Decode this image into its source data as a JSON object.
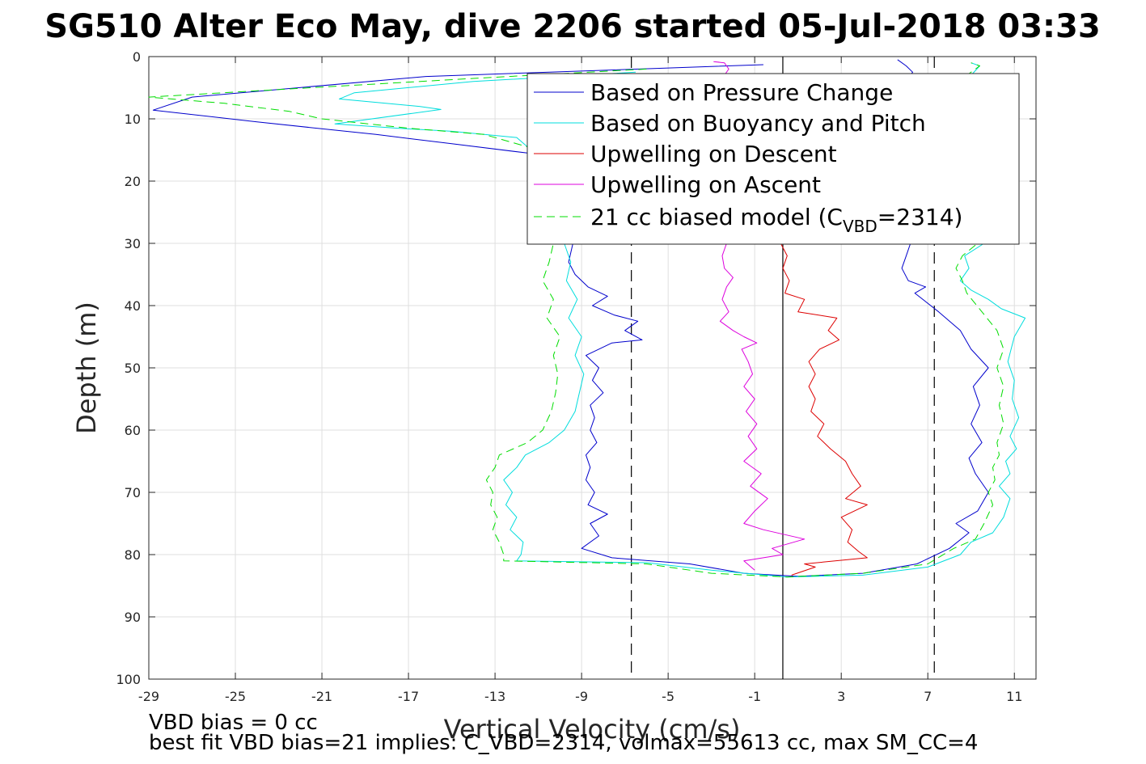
{
  "chart_data": {
    "type": "line",
    "title": "SG510 Alter Eco May, dive 2206 started 05-Jul-2018 03:33",
    "xlabel": "Vertical Velocity (cm/s)",
    "ylabel": "Depth (m)",
    "xlim": [
      -29,
      12
    ],
    "ylim": [
      0,
      100
    ],
    "y_reversed": true,
    "grid": true,
    "legend_position": "top-right",
    "x_ticks": [
      "-29",
      "-25",
      "-21",
      "-17",
      "-13",
      "-9",
      "-5",
      "-1",
      "3",
      "7",
      "11"
    ],
    "x_tick_values": [
      -29,
      -25,
      -21,
      -17,
      -13,
      -9,
      -5,
      -1,
      3,
      7,
      11
    ],
    "y_ticks": [
      "0",
      "10",
      "20",
      "30",
      "40",
      "50",
      "60",
      "70",
      "80",
      "90",
      "100"
    ],
    "y_tick_values": [
      0,
      10,
      20,
      30,
      40,
      50,
      60,
      70,
      80,
      90,
      100
    ],
    "reference_lines": [
      {
        "x": 0.3,
        "style": "solid",
        "color": "#000000"
      },
      {
        "x": -6.7,
        "style": "dashed",
        "color": "#000000"
      },
      {
        "x": 7.3,
        "style": "dashed",
        "color": "#000000"
      }
    ],
    "series": [
      {
        "name": "Based on Pressure Change",
        "color": "#0000cc",
        "style": "solid",
        "points": [
          [
            -0.6,
            1.3
          ],
          [
            -16.2,
            3.2
          ],
          [
            -27.0,
            6.5
          ],
          [
            -28.8,
            8.6
          ],
          [
            -24.0,
            10.5
          ],
          [
            -18.5,
            12.5
          ],
          [
            -15.0,
            14.0
          ],
          [
            -11.5,
            15.5
          ],
          [
            -9.8,
            17.0
          ],
          [
            -9.4,
            30.0
          ],
          [
            -9.6,
            33.0
          ],
          [
            -9.3,
            35.0
          ],
          [
            -8.7,
            37.0
          ],
          [
            -7.8,
            38.5
          ],
          [
            -8.5,
            40.0
          ],
          [
            -7.5,
            41.5
          ],
          [
            -6.4,
            42.5
          ],
          [
            -7.0,
            44.0
          ],
          [
            -6.2,
            45.5
          ],
          [
            -7.6,
            46.0
          ],
          [
            -8.8,
            48.0
          ],
          [
            -8.2,
            50.0
          ],
          [
            -8.5,
            52.0
          ],
          [
            -8.0,
            54.0
          ],
          [
            -8.6,
            56.0
          ],
          [
            -8.4,
            58.0
          ],
          [
            -8.6,
            60.0
          ],
          [
            -8.3,
            62.0
          ],
          [
            -8.8,
            64.0
          ],
          [
            -8.6,
            66.0
          ],
          [
            -8.8,
            68.0
          ],
          [
            -8.4,
            70.0
          ],
          [
            -8.7,
            72.0
          ],
          [
            -7.8,
            73.5
          ],
          [
            -8.6,
            75.0
          ],
          [
            -8.2,
            77.0
          ],
          [
            -9.0,
            79.0
          ],
          [
            -7.6,
            80.5
          ],
          [
            -4.0,
            81.5
          ],
          [
            -1.5,
            83.0
          ],
          [
            1.0,
            83.5
          ],
          [
            4.0,
            83.0
          ],
          [
            6.5,
            81.5
          ],
          [
            8.0,
            79.0
          ],
          [
            8.9,
            76.5
          ],
          [
            8.3,
            75.0
          ],
          [
            9.3,
            73.0
          ],
          [
            9.8,
            70.0
          ],
          [
            9.2,
            67.0
          ],
          [
            8.9,
            64.5
          ],
          [
            9.5,
            62.0
          ],
          [
            9.0,
            59.0
          ],
          [
            9.4,
            56.0
          ],
          [
            9.1,
            53.0
          ],
          [
            9.8,
            50.0
          ],
          [
            9.0,
            47.0
          ],
          [
            8.5,
            44.0
          ],
          [
            7.5,
            41.0
          ],
          [
            6.4,
            38.0
          ],
          [
            6.9,
            37.0
          ],
          [
            6.1,
            36.0
          ],
          [
            5.8,
            34.0
          ],
          [
            6.0,
            32.0
          ],
          [
            6.2,
            30.0
          ],
          [
            6.0,
            23.0
          ],
          [
            6.4,
            18.0
          ],
          [
            6.0,
            13.0
          ],
          [
            5.7,
            5.0
          ],
          [
            6.3,
            2.5
          ],
          [
            6.0,
            1.5
          ],
          [
            5.6,
            0.5
          ]
        ]
      },
      {
        "name": "Based on Buoyancy and Pitch",
        "color": "#00dddd",
        "style": "solid",
        "points": [
          [
            -6.5,
            2.5
          ],
          [
            -14.0,
            4.0
          ],
          [
            -19.5,
            5.8
          ],
          [
            -20.2,
            6.8
          ],
          [
            -16.5,
            8.0
          ],
          [
            -15.5,
            8.5
          ],
          [
            -20.4,
            10.8
          ],
          [
            -17.5,
            11.5
          ],
          [
            -15.0,
            12.0
          ],
          [
            -12.0,
            13.0
          ],
          [
            -11.0,
            16.0
          ],
          [
            -9.8,
            30.0
          ],
          [
            -9.5,
            33.0
          ],
          [
            -9.7,
            36.0
          ],
          [
            -9.2,
            39.0
          ],
          [
            -9.6,
            42.0
          ],
          [
            -9.0,
            45.0
          ],
          [
            -9.3,
            48.0
          ],
          [
            -8.9,
            51.0
          ],
          [
            -9.1,
            54.0
          ],
          [
            -9.3,
            57.0
          ],
          [
            -9.8,
            60.0
          ],
          [
            -10.5,
            62.0
          ],
          [
            -11.6,
            64.0
          ],
          [
            -12.0,
            66.0
          ],
          [
            -12.6,
            68.0
          ],
          [
            -12.2,
            70.0
          ],
          [
            -12.5,
            72.0
          ],
          [
            -12.0,
            74.0
          ],
          [
            -12.3,
            76.0
          ],
          [
            -11.7,
            78.0
          ],
          [
            -11.8,
            80.0
          ],
          [
            -12.0,
            81.0
          ],
          [
            -6.0,
            81.3
          ],
          [
            -3.0,
            82.5
          ],
          [
            0.5,
            83.6
          ],
          [
            4.0,
            83.3
          ],
          [
            7.0,
            82.0
          ],
          [
            8.5,
            80.0
          ],
          [
            9.0,
            78.0
          ],
          [
            10.0,
            76.5
          ],
          [
            10.5,
            74.0
          ],
          [
            10.8,
            71.0
          ],
          [
            10.3,
            69.0
          ],
          [
            10.8,
            67.0
          ],
          [
            10.6,
            65.0
          ],
          [
            11.1,
            63.0
          ],
          [
            10.8,
            61.0
          ],
          [
            11.2,
            58.0
          ],
          [
            10.9,
            55.0
          ],
          [
            11.0,
            52.0
          ],
          [
            10.7,
            49.0
          ],
          [
            11.0,
            45.0
          ],
          [
            11.5,
            42.0
          ],
          [
            10.4,
            40.5
          ],
          [
            9.8,
            39.0
          ],
          [
            9.0,
            37.5
          ],
          [
            8.5,
            36.0
          ],
          [
            8.9,
            34.0
          ],
          [
            8.7,
            32.0
          ],
          [
            9.6,
            30.0
          ],
          [
            9.0,
            24.0
          ],
          [
            9.4,
            18.0
          ],
          [
            9.0,
            12.0
          ],
          [
            9.3,
            6.0
          ],
          [
            9.0,
            3.0
          ],
          [
            9.4,
            1.5
          ],
          [
            9.0,
            1.0
          ]
        ]
      },
      {
        "name": "Upwelling on Descent",
        "color": "#dd0000",
        "style": "solid",
        "points": [
          [
            -2.0,
            8.4
          ],
          [
            -2.5,
            9.0
          ],
          [
            -2.4,
            8.0
          ],
          [
            0.2,
            30.0
          ],
          [
            0.5,
            32.0
          ],
          [
            0.3,
            34.0
          ],
          [
            0.6,
            36.0
          ],
          [
            0.4,
            38.0
          ],
          [
            1.3,
            39.0
          ],
          [
            1.0,
            41.0
          ],
          [
            2.8,
            42.0
          ],
          [
            2.4,
            44.0
          ],
          [
            2.9,
            45.5
          ],
          [
            2.0,
            47.0
          ],
          [
            1.5,
            49.0
          ],
          [
            1.8,
            51.0
          ],
          [
            1.5,
            53.0
          ],
          [
            1.8,
            55.0
          ],
          [
            1.6,
            57.0
          ],
          [
            2.2,
            59.0
          ],
          [
            1.9,
            61.0
          ],
          [
            2.5,
            63.0
          ],
          [
            3.2,
            65.0
          ],
          [
            3.5,
            67.0
          ],
          [
            3.9,
            69.0
          ],
          [
            3.2,
            71.0
          ],
          [
            4.2,
            72.0
          ],
          [
            3.0,
            74.0
          ],
          [
            3.5,
            76.0
          ],
          [
            3.3,
            78.0
          ],
          [
            3.8,
            79.5
          ],
          [
            4.2,
            80.5
          ],
          [
            1.3,
            81.5
          ],
          [
            1.8,
            82.0
          ],
          [
            0.7,
            83.3
          ]
        ]
      },
      {
        "name": "Upwelling on Ascent",
        "color": "#dd00dd",
        "style": "solid",
        "points": [
          [
            -1.0,
            82.5
          ],
          [
            -1.5,
            81.0
          ],
          [
            0.3,
            80.0
          ],
          [
            -0.2,
            79.0
          ],
          [
            1.3,
            77.5
          ],
          [
            -0.6,
            76.0
          ],
          [
            -1.5,
            75.0
          ],
          [
            -1.0,
            73.0
          ],
          [
            -0.4,
            71.0
          ],
          [
            -1.2,
            69.0
          ],
          [
            -0.7,
            67.0
          ],
          [
            -1.5,
            65.0
          ],
          [
            -0.9,
            63.0
          ],
          [
            -1.3,
            61.0
          ],
          [
            -0.9,
            59.0
          ],
          [
            -1.4,
            57.0
          ],
          [
            -1.0,
            55.0
          ],
          [
            -1.5,
            53.0
          ],
          [
            -1.1,
            51.0
          ],
          [
            -1.3,
            49.0
          ],
          [
            -1.6,
            47.0
          ],
          [
            -0.9,
            46.0
          ],
          [
            -1.5,
            45.0
          ],
          [
            -2.0,
            44.0
          ],
          [
            -2.6,
            42.5
          ],
          [
            -2.2,
            41.0
          ],
          [
            -2.5,
            39.0
          ],
          [
            -2.3,
            37.0
          ],
          [
            -2.0,
            35.5
          ],
          [
            -2.4,
            34.0
          ],
          [
            -2.5,
            32.0
          ],
          [
            -2.3,
            30.0
          ],
          [
            -2.5,
            25.0
          ],
          [
            -2.3,
            20.0
          ],
          [
            -2.4,
            10.0
          ],
          [
            -2.6,
            4.0
          ],
          [
            -2.2,
            2.0
          ],
          [
            -2.4,
            1.0
          ],
          [
            -2.9,
            0.8
          ]
        ]
      },
      {
        "name": "21 cc biased model (C",
        "color": "#00dd00",
        "style": "dashed",
        "points": [
          [
            -6.0,
            2.0
          ],
          [
            -14.0,
            3.5
          ],
          [
            -24.0,
            5.5
          ],
          [
            -29.0,
            6.5
          ],
          [
            -25.5,
            7.5
          ],
          [
            -22.5,
            8.8
          ],
          [
            -21.0,
            10.0
          ],
          [
            -17.0,
            11.5
          ],
          [
            -13.5,
            12.5
          ],
          [
            -11.5,
            14.5
          ],
          [
            -10.3,
            16.5
          ],
          [
            -10.3,
            30.0
          ],
          [
            -10.5,
            33.0
          ],
          [
            -10.8,
            36.0
          ],
          [
            -10.3,
            39.0
          ],
          [
            -10.6,
            42.0
          ],
          [
            -10.0,
            45.0
          ],
          [
            -10.3,
            48.0
          ],
          [
            -10.1,
            51.0
          ],
          [
            -10.2,
            54.0
          ],
          [
            -10.4,
            57.0
          ],
          [
            -10.8,
            60.0
          ],
          [
            -11.5,
            62.0
          ],
          [
            -12.8,
            64.0
          ],
          [
            -13.0,
            66.0
          ],
          [
            -13.4,
            68.0
          ],
          [
            -13.1,
            70.0
          ],
          [
            -13.2,
            72.0
          ],
          [
            -12.9,
            74.0
          ],
          [
            -13.1,
            76.0
          ],
          [
            -12.8,
            78.0
          ],
          [
            -12.6,
            80.0
          ],
          [
            -12.6,
            81.0
          ],
          [
            -6.0,
            81.5
          ],
          [
            -3.0,
            83.0
          ],
          [
            0.5,
            83.6
          ],
          [
            4.0,
            83.0
          ],
          [
            7.0,
            81.5
          ],
          [
            8.2,
            79.0
          ],
          [
            9.2,
            77.5
          ],
          [
            9.6,
            75.0
          ],
          [
            10.0,
            72.0
          ],
          [
            9.8,
            70.0
          ],
          [
            10.1,
            68.0
          ],
          [
            10.0,
            66.0
          ],
          [
            10.3,
            64.0
          ],
          [
            10.2,
            62.0
          ],
          [
            10.5,
            59.0
          ],
          [
            10.3,
            56.0
          ],
          [
            10.5,
            53.0
          ],
          [
            10.2,
            50.0
          ],
          [
            10.5,
            47.0
          ],
          [
            10.2,
            44.0
          ],
          [
            9.5,
            41.0
          ],
          [
            8.8,
            38.0
          ],
          [
            8.6,
            36.0
          ],
          [
            8.3,
            34.0
          ],
          [
            8.6,
            32.0
          ],
          [
            9.3,
            30.0
          ],
          [
            8.8,
            24.0
          ],
          [
            9.1,
            18.0
          ],
          [
            8.7,
            12.0
          ],
          [
            9.0,
            6.0
          ],
          [
            8.8,
            3.0
          ],
          [
            9.4,
            1.5
          ],
          [
            9.0,
            1.0
          ]
        ]
      }
    ],
    "legend_entries": [
      "Based on Pressure Change",
      "Based on Buoyancy and Pitch",
      "Upwelling on Descent",
      "Upwelling on Ascent"
    ],
    "legend_model_text_prefix": "21 cc biased model (C",
    "legend_model_subscript": "VBD",
    "legend_model_text_suffix": "=2314)",
    "footnotes": [
      "VBD bias = 0 cc",
      "best fit VBD bias=21 implies: C_VBD=2314, volmax=55613 cc, max SM_CC=4"
    ]
  }
}
